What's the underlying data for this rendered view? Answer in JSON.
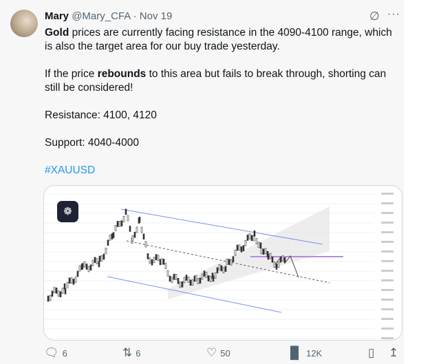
{
  "author": {
    "name": "Mary",
    "handle": "@Mary_CFA",
    "date": "Nov 19"
  },
  "body": {
    "p1_bold": "Gold",
    "p1_rest": " prices are currently facing resistance in the 4090-4100 range, which is also the target area for our buy trade yesterday.",
    "p2_start": "If the price ",
    "p2_bold": "rebounds",
    "p2_rest": " to this area but fails to break through, shorting can still be considered!",
    "resistance": "Resistance: 4100, 4120",
    "support": "Support: 4040-4000",
    "hashtag": "#XAUUSD"
  },
  "actions": {
    "replies": "6",
    "reposts": "6",
    "likes": "50",
    "views": "12K"
  },
  "colors": {
    "accent": "#1d9bf0",
    "channel": "#7b8ff0",
    "text": "#0f1419"
  }
}
